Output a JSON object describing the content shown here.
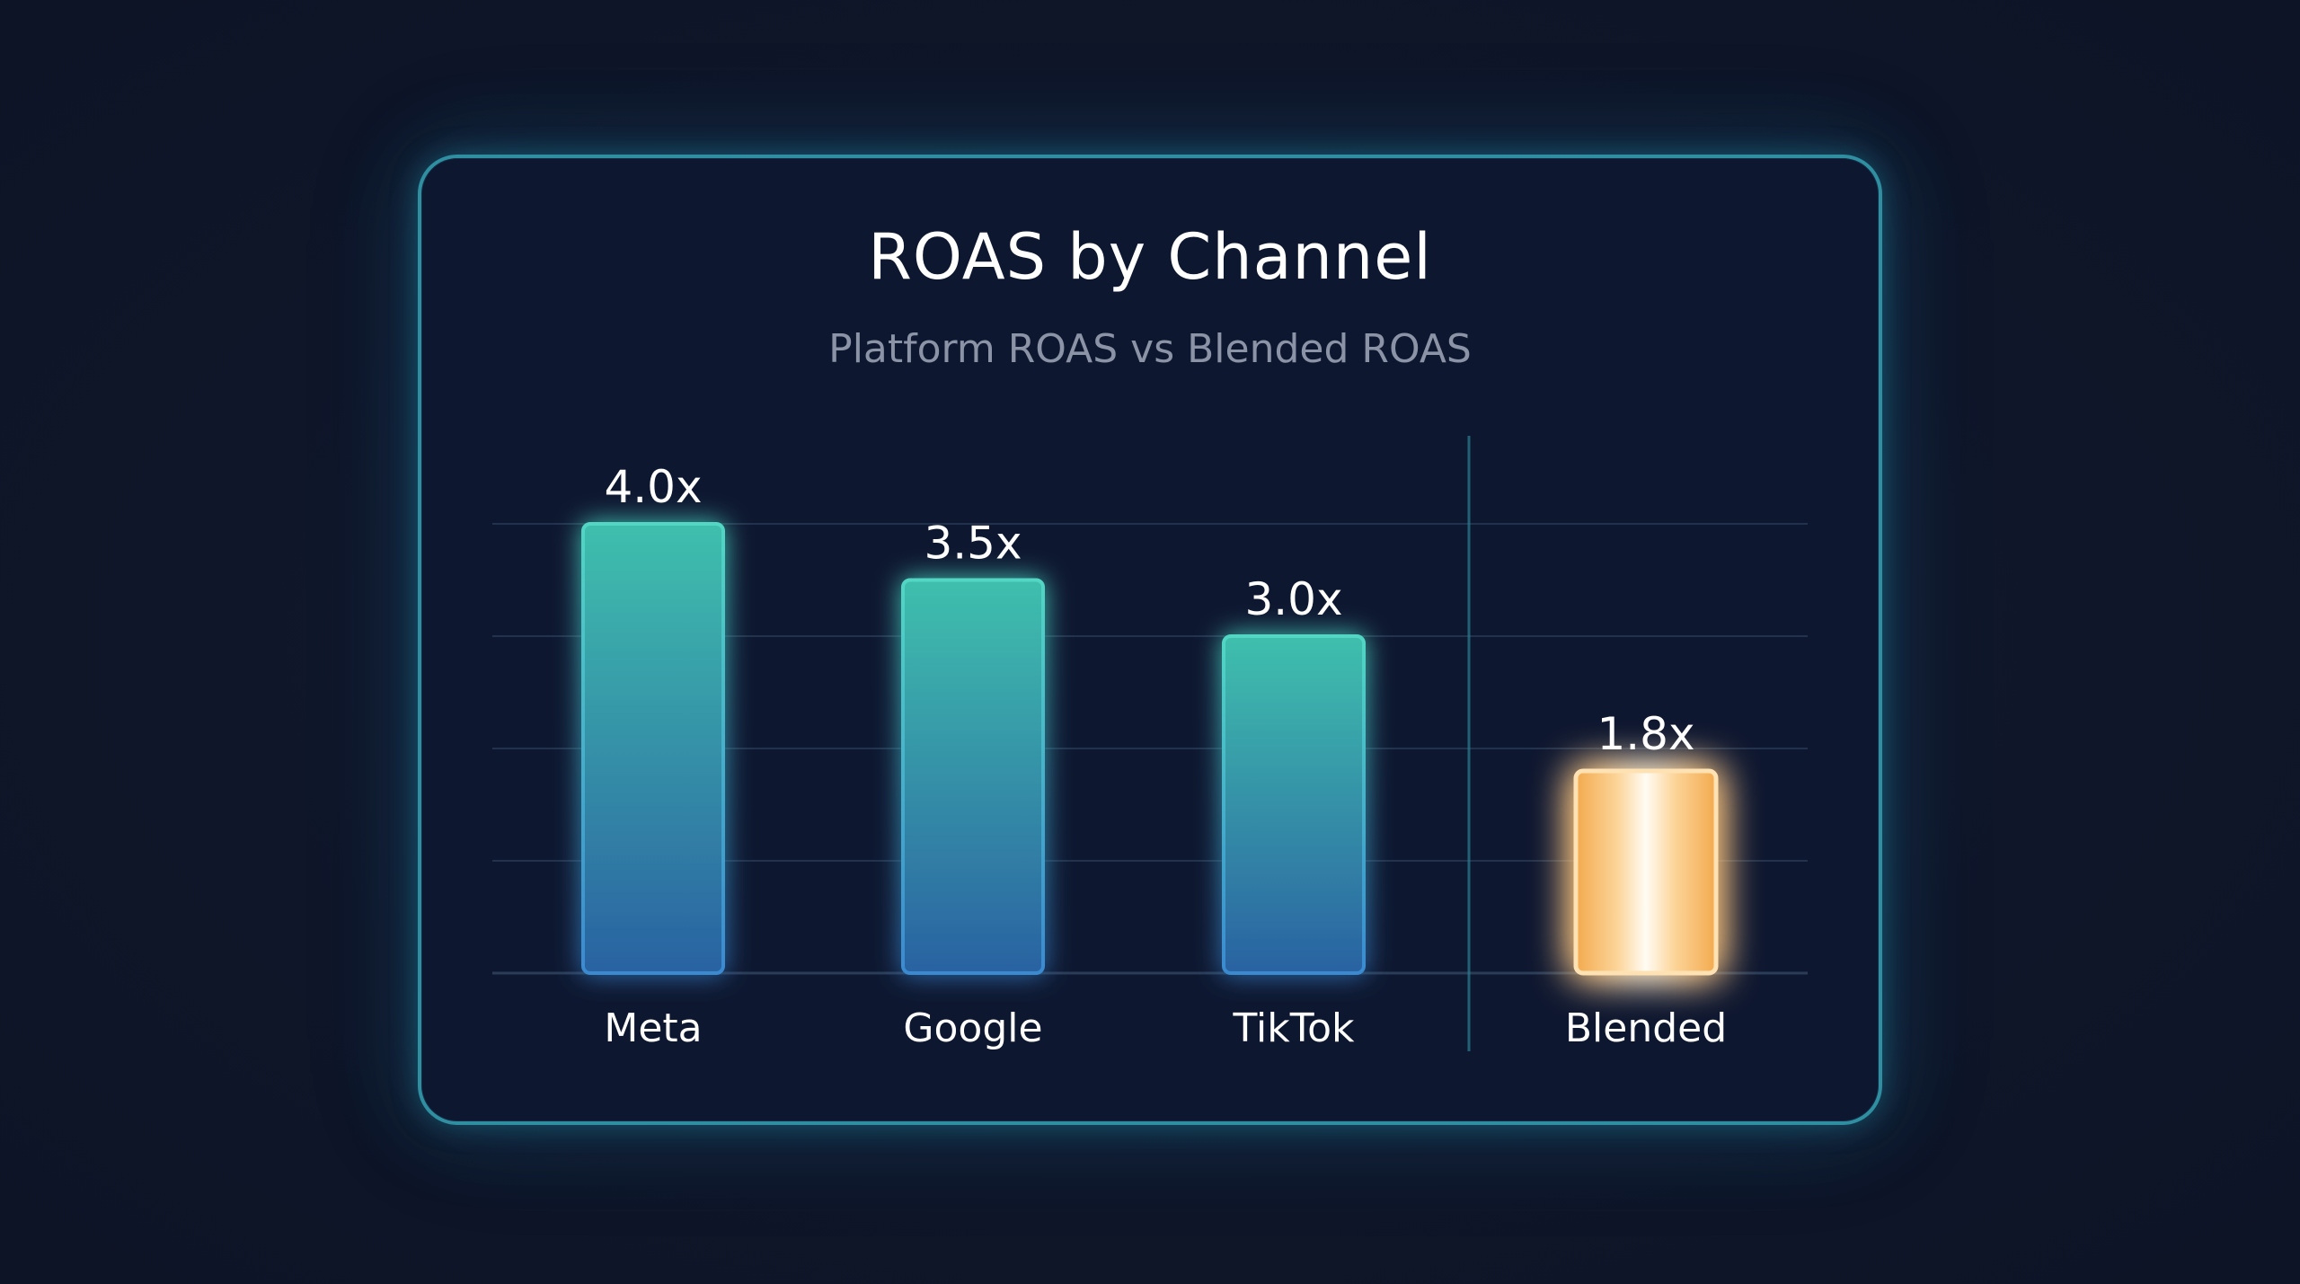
{
  "colors": {
    "background": "#0f1629",
    "card_border": "#2f8fa0",
    "platform_bar_top": "#3dbdad",
    "platform_bar_bottom": "#2a64a3",
    "blended_bar_edge": "#f6b45c",
    "blended_bar_center": "#fffaf0"
  },
  "chart_data": {
    "type": "bar",
    "title": "ROAS by Channel",
    "subtitle": "Platform ROAS vs Blended ROAS",
    "categories": [
      "Meta",
      "Google",
      "TikTok",
      "Blended"
    ],
    "values": [
      4.0,
      3.5,
      3.0,
      1.8
    ],
    "value_labels": [
      "4.0x",
      "3.5x",
      "3.0x",
      "1.8x"
    ],
    "highlight": [
      "Blended"
    ],
    "ylim": [
      0,
      4
    ],
    "grid": true,
    "xlabel": "",
    "ylabel": ""
  }
}
